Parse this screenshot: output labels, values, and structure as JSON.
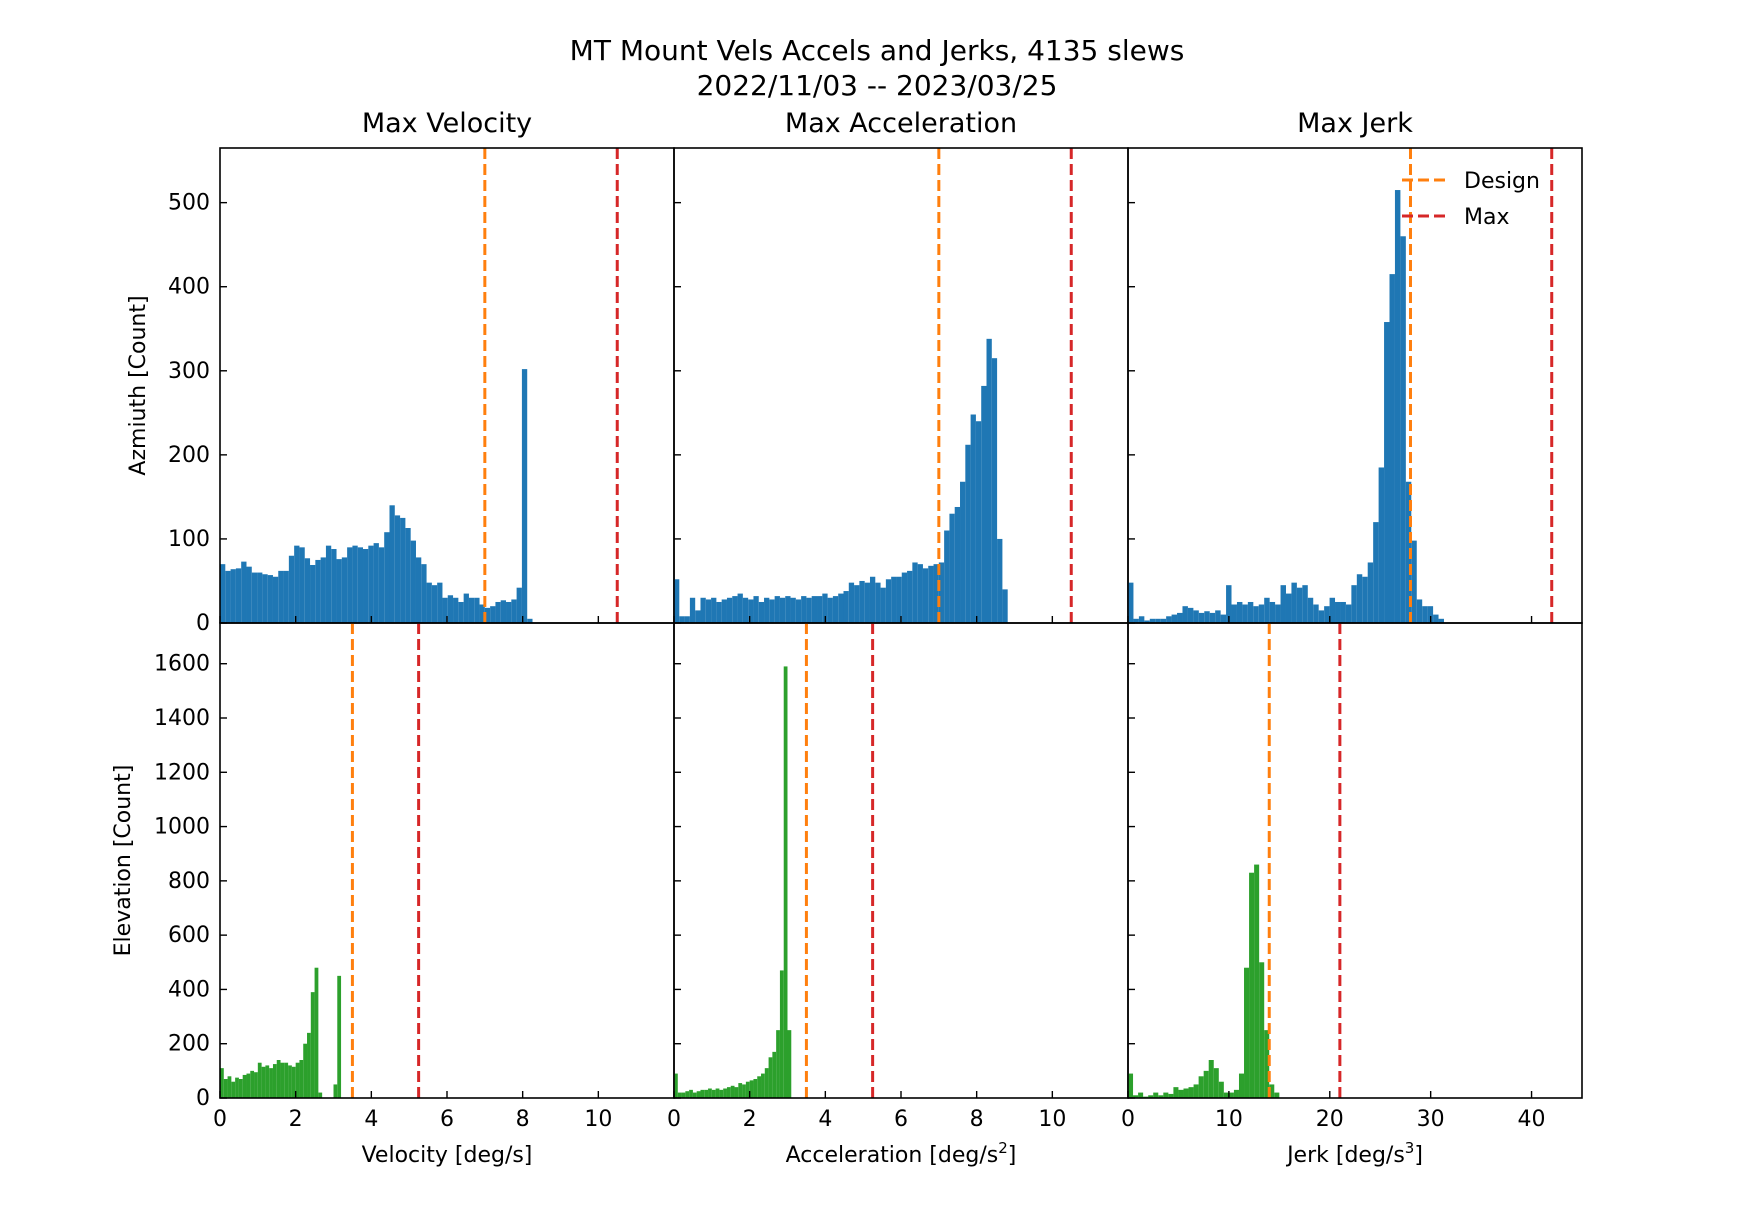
{
  "figure": {
    "title_line1": "MT Mount Vels Accels and Jerks, 4135 slews",
    "title_line2": "2022/11/03 -- 2023/03/25",
    "colors": {
      "azimuth": "#1f77b4",
      "elevation": "#2ca02c",
      "design": "#ff7f0e",
      "max": "#d62728"
    },
    "legend": {
      "placement": "upper-right of Max Jerk azimuth panel",
      "design_label": "Design",
      "max_label": "Max"
    }
  },
  "rows": [
    {
      "ylabel": "Azmiuth [Count]",
      "ylim": [
        0,
        565
      ],
      "yticks": [
        0,
        100,
        200,
        300,
        400,
        500
      ]
    },
    {
      "ylabel": "Elevation [Count]",
      "ylim": [
        0,
        1750
      ],
      "yticks": [
        0,
        200,
        400,
        600,
        800,
        1000,
        1200,
        1400,
        1600
      ]
    }
  ],
  "columns": [
    {
      "title": "Max Velocity",
      "xlabel": "Velocity [deg/s]",
      "xlabel_sup": "",
      "xlabel_close": "",
      "xlim": [
        0,
        12
      ],
      "xticks": [
        0,
        2,
        4,
        6,
        8,
        10
      ]
    },
    {
      "title": "Max Acceleration",
      "xlabel": "Acceleration [deg/s",
      "xlabel_sup": "2",
      "xlabel_close": "]",
      "xlim": [
        0,
        12
      ],
      "xticks": [
        0,
        2,
        4,
        6,
        8,
        10
      ]
    },
    {
      "title": "Max Jerk",
      "xlabel": "Jerk [deg/s",
      "xlabel_sup": "3",
      "xlabel_close": "]",
      "xlim": [
        0,
        45
      ],
      "xticks": [
        0,
        10,
        20,
        30,
        40
      ]
    }
  ],
  "chart_data": [
    {
      "type": "bar",
      "panel": "azimuth-velocity",
      "row": 0,
      "col": 0,
      "bin_start": 0,
      "bin_width": 0.14,
      "values": [
        70,
        62,
        64,
        65,
        73,
        67,
        60,
        60,
        58,
        57,
        55,
        62,
        62,
        80,
        92,
        90,
        77,
        69,
        75,
        78,
        92,
        88,
        76,
        78,
        90,
        92,
        90,
        88,
        92,
        95,
        90,
        108,
        140,
        128,
        125,
        113,
        98,
        78,
        70,
        48,
        45,
        48,
        30,
        33,
        30,
        25,
        35,
        30,
        30,
        22,
        18,
        20,
        25,
        27,
        25,
        28,
        42,
        302,
        5
      ],
      "vlines": [
        {
          "x": 7.0,
          "kind": "design"
        },
        {
          "x": 10.5,
          "kind": "max"
        }
      ]
    },
    {
      "type": "bar",
      "panel": "azimuth-acceleration",
      "row": 0,
      "col": 1,
      "bin_start": 0,
      "bin_width": 0.14,
      "values": [
        52,
        8,
        8,
        30,
        15,
        30,
        28,
        30,
        25,
        28,
        30,
        32,
        35,
        30,
        28,
        32,
        25,
        30,
        28,
        32,
        30,
        32,
        30,
        28,
        32,
        30,
        32,
        32,
        35,
        30,
        32,
        35,
        38,
        48,
        45,
        50,
        48,
        55,
        48,
        42,
        52,
        55,
        55,
        60,
        62,
        72,
        70,
        65,
        68,
        70,
        72,
        110,
        130,
        138,
        168,
        212,
        248,
        240,
        282,
        338,
        315,
        100,
        40
      ],
      "vlines": [
        {
          "x": 7.0,
          "kind": "design"
        },
        {
          "x": 10.5,
          "kind": "max"
        }
      ]
    },
    {
      "type": "bar",
      "panel": "azimuth-jerk",
      "row": 0,
      "col": 2,
      "bin_start": 0,
      "bin_width": 0.54,
      "values": [
        48,
        5,
        8,
        3,
        5,
        5,
        5,
        8,
        10,
        12,
        20,
        18,
        15,
        12,
        14,
        12,
        15,
        10,
        45,
        22,
        25,
        22,
        25,
        20,
        22,
        30,
        25,
        22,
        45,
        35,
        48,
        42,
        45,
        30,
        22,
        15,
        20,
        30,
        25,
        25,
        22,
        45,
        58,
        55,
        72,
        120,
        185,
        358,
        415,
        515,
        460,
        168,
        98,
        28,
        20,
        20,
        10,
        5
      ],
      "vlines": [
        {
          "x": 28.0,
          "kind": "design"
        },
        {
          "x": 42.0,
          "kind": "max"
        }
      ]
    },
    {
      "type": "bar",
      "panel": "elevation-velocity",
      "row": 1,
      "col": 0,
      "bin_start": 0,
      "bin_width": 0.1,
      "values": [
        110,
        70,
        80,
        60,
        75,
        70,
        85,
        90,
        100,
        95,
        130,
        115,
        120,
        110,
        125,
        140,
        130,
        130,
        120,
        115,
        130,
        140,
        200,
        240,
        390,
        480,
        20,
        0,
        0,
        0,
        50,
        450
      ],
      "vlines": [
        {
          "x": 3.5,
          "kind": "design"
        },
        {
          "x": 5.25,
          "kind": "max"
        }
      ]
    },
    {
      "type": "bar",
      "panel": "elevation-acceleration",
      "row": 1,
      "col": 1,
      "bin_start": 0,
      "bin_width": 0.1,
      "values": [
        90,
        20,
        20,
        25,
        30,
        20,
        25,
        30,
        30,
        35,
        30,
        35,
        30,
        35,
        40,
        45,
        40,
        55,
        50,
        60,
        65,
        70,
        80,
        90,
        110,
        150,
        170,
        250,
        470,
        1590,
        250
      ],
      "vlines": [
        {
          "x": 3.5,
          "kind": "design"
        },
        {
          "x": 5.25,
          "kind": "max"
        }
      ]
    },
    {
      "type": "bar",
      "panel": "elevation-jerk",
      "row": 1,
      "col": 2,
      "bin_start": 0,
      "bin_width": 0.5,
      "values": [
        90,
        10,
        20,
        5,
        10,
        20,
        10,
        20,
        15,
        40,
        30,
        35,
        40,
        50,
        80,
        100,
        140,
        110,
        60,
        20,
        20,
        30,
        90,
        480,
        830,
        860,
        500,
        250,
        50,
        20
      ],
      "vlines": [
        {
          "x": 14.0,
          "kind": "design"
        },
        {
          "x": 21.0,
          "kind": "max"
        }
      ]
    }
  ]
}
